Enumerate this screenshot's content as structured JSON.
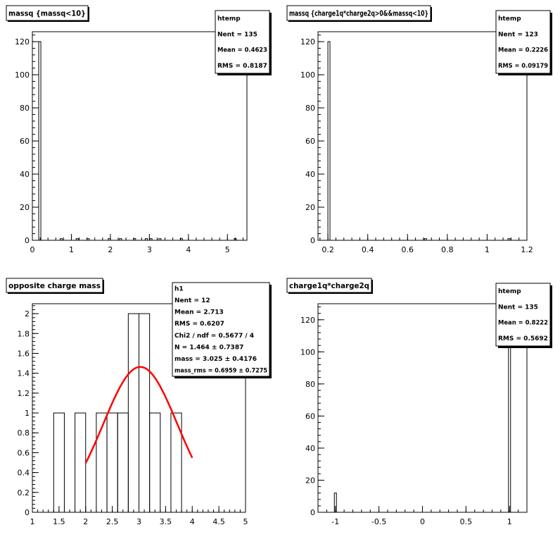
{
  "chart_data": [
    {
      "type": "bar",
      "title": "massq {massq<10}",
      "xlim": [
        0,
        5.5
      ],
      "ylim": [
        0,
        126
      ],
      "x_ticks": [
        0,
        1,
        2,
        3,
        4,
        5
      ],
      "y_ticks": [
        0,
        20,
        40,
        60,
        80,
        100,
        120
      ],
      "bin_width": 0.055,
      "bins": [
        {
          "x": 0.19,
          "value": 120
        },
        {
          "x": 0.74,
          "value": 1
        },
        {
          "x": 1.15,
          "value": 1
        },
        {
          "x": 1.43,
          "value": 1
        },
        {
          "x": 1.97,
          "value": 1
        },
        {
          "x": 2.26,
          "value": 1
        },
        {
          "x": 2.62,
          "value": 1
        },
        {
          "x": 2.92,
          "value": 1
        },
        {
          "x": 3.04,
          "value": 1
        },
        {
          "x": 3.27,
          "value": 1
        },
        {
          "x": 3.82,
          "value": 1
        },
        {
          "x": 5.2,
          "value": 1
        }
      ],
      "stats": {
        "name": "htemp",
        "rows": [
          {
            "label": "Nent",
            "value": "135"
          },
          {
            "label": "Mean",
            "value": "0.4623"
          },
          {
            "label": "RMS",
            "value": "0.8187"
          }
        ]
      }
    },
    {
      "type": "bar",
      "title": "massq {charge1q*charge2q>0&&massq<10}",
      "xlim": [
        0.15,
        1.2
      ],
      "ylim": [
        0,
        126
      ],
      "x_ticks": [
        0.2,
        0.4,
        0.6,
        0.8,
        1,
        1.2
      ],
      "y_ticks": [
        0,
        20,
        40,
        60,
        80,
        100,
        120
      ],
      "bin_width": 0.0105,
      "bins": [
        {
          "x": 0.205,
          "value": 120
        },
        {
          "x": 0.69,
          "value": 1
        },
        {
          "x": 1.11,
          "value": 1
        }
      ],
      "stats": {
        "name": "htemp",
        "rows": [
          {
            "label": "Nent",
            "value": "123"
          },
          {
            "label": "Mean",
            "value": "0.2226"
          },
          {
            "label": "RMS",
            "value": "0.09179"
          }
        ]
      }
    },
    {
      "type": "bar",
      "title": "opposite charge mass",
      "xlim": [
        1,
        5
      ],
      "ylim": [
        0,
        2.1
      ],
      "x_ticks": [
        1,
        1.5,
        2,
        2.5,
        3,
        3.5,
        4,
        4.5,
        5
      ],
      "y_ticks": [
        0,
        0.2,
        0.4,
        0.6,
        0.8,
        1,
        1.2,
        1.4,
        1.6,
        1.8,
        2
      ],
      "bin_width": 0.2,
      "bins": [
        {
          "x": 1.5,
          "value": 1
        },
        {
          "x": 1.7,
          "value": 0
        },
        {
          "x": 1.9,
          "value": 1
        },
        {
          "x": 2.1,
          "value": 0
        },
        {
          "x": 2.3,
          "value": 1
        },
        {
          "x": 2.5,
          "value": 1
        },
        {
          "x": 2.7,
          "value": 1
        },
        {
          "x": 2.9,
          "value": 2
        },
        {
          "x": 3.1,
          "value": 2
        },
        {
          "x": 3.3,
          "value": 1
        },
        {
          "x": 3.5,
          "value": 0
        },
        {
          "x": 3.7,
          "value": 1
        }
      ],
      "fit": {
        "color": "#ff0000",
        "amplitude": 1.464,
        "mean": 3.025,
        "sigma": 0.6959,
        "x_range": [
          2,
          4
        ]
      },
      "stats": {
        "name": "h1",
        "rows": [
          {
            "label": "Nent",
            "value": "12"
          },
          {
            "label": "Mean",
            "value": "2.713"
          },
          {
            "label": "RMS",
            "value": "0.6207"
          },
          {
            "label": "Chi2 / ndf",
            "value": "0.5677 / 4"
          },
          {
            "label": "N",
            "value": "1.464 ± 0.7387"
          },
          {
            "label": "mass",
            "value": "3.025 ± 0.4176"
          },
          {
            "label": "mass_rms",
            "value": "0.6959 ± 0.7275"
          }
        ]
      }
    },
    {
      "type": "bar",
      "title": "charge1q*charge2q",
      "xlim": [
        -1.2,
        1.2
      ],
      "ylim": [
        0,
        130
      ],
      "x_ticks": [
        -1,
        -0.5,
        0,
        0.5,
        1
      ],
      "y_ticks": [
        0,
        20,
        40,
        60,
        80,
        100,
        120
      ],
      "bin_width": 0.024,
      "bins": [
        {
          "x": -1.0,
          "value": 12
        },
        {
          "x": 1.0,
          "value": 123
        }
      ],
      "stats": {
        "name": "htemp",
        "rows": [
          {
            "label": "Nent",
            "value": "135"
          },
          {
            "label": "Mean",
            "value": "0.8222"
          },
          {
            "label": "RMS",
            "value": "0.5692"
          }
        ]
      }
    }
  ]
}
